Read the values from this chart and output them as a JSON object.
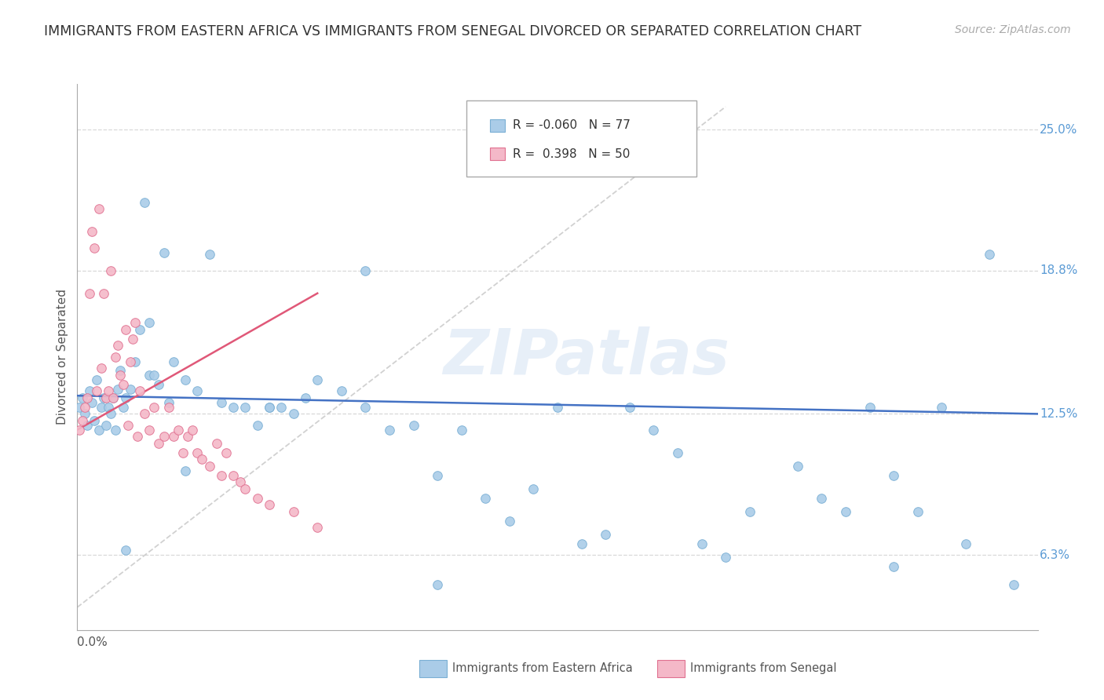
{
  "title": "IMMIGRANTS FROM EASTERN AFRICA VS IMMIGRANTS FROM SENEGAL DIVORCED OR SEPARATED CORRELATION CHART",
  "source": "Source: ZipAtlas.com",
  "ylabel": "Divorced or Separated",
  "watermark": "ZIPatlas",
  "series": [
    {
      "name": "Immigrants from Eastern Africa",
      "color": "#aacce8",
      "edge_color": "#7aafd4",
      "R": -0.06,
      "N": 77,
      "trend_color": "#4472c4",
      "x": [
        0.001,
        0.002,
        0.003,
        0.004,
        0.005,
        0.006,
        0.007,
        0.008,
        0.009,
        0.01,
        0.011,
        0.012,
        0.013,
        0.014,
        0.015,
        0.016,
        0.017,
        0.018,
        0.019,
        0.02,
        0.022,
        0.024,
        0.026,
        0.028,
        0.03,
        0.032,
        0.034,
        0.036,
        0.038,
        0.04,
        0.045,
        0.05,
        0.055,
        0.06,
        0.065,
        0.07,
        0.075,
        0.08,
        0.085,
        0.09,
        0.095,
        0.1,
        0.11,
        0.12,
        0.13,
        0.14,
        0.15,
        0.16,
        0.17,
        0.18,
        0.19,
        0.2,
        0.21,
        0.22,
        0.23,
        0.24,
        0.25,
        0.26,
        0.27,
        0.28,
        0.3,
        0.31,
        0.32,
        0.33,
        0.34,
        0.35,
        0.36,
        0.37,
        0.38,
        0.39,
        0.34,
        0.15,
        0.12,
        0.08,
        0.045,
        0.03,
        0.02
      ],
      "y": [
        0.128,
        0.132,
        0.125,
        0.12,
        0.135,
        0.13,
        0.122,
        0.14,
        0.118,
        0.128,
        0.132,
        0.12,
        0.128,
        0.125,
        0.132,
        0.118,
        0.136,
        0.144,
        0.128,
        0.132,
        0.136,
        0.148,
        0.162,
        0.218,
        0.142,
        0.142,
        0.138,
        0.196,
        0.13,
        0.148,
        0.14,
        0.135,
        0.195,
        0.13,
        0.128,
        0.128,
        0.12,
        0.128,
        0.128,
        0.125,
        0.132,
        0.14,
        0.135,
        0.128,
        0.118,
        0.12,
        0.098,
        0.118,
        0.088,
        0.078,
        0.092,
        0.128,
        0.068,
        0.072,
        0.128,
        0.118,
        0.108,
        0.068,
        0.062,
        0.082,
        0.102,
        0.088,
        0.082,
        0.128,
        0.098,
        0.082,
        0.128,
        0.068,
        0.195,
        0.05,
        0.058,
        0.05,
        0.188,
        0.128,
        0.1,
        0.165,
        0.065
      ]
    },
    {
      "name": "Immigrants from Senegal",
      "color": "#f4b8c8",
      "edge_color": "#e07090",
      "R": 0.398,
      "N": 50,
      "trend_color": "#e05878",
      "x": [
        0.001,
        0.002,
        0.003,
        0.004,
        0.005,
        0.006,
        0.007,
        0.008,
        0.009,
        0.01,
        0.011,
        0.012,
        0.013,
        0.014,
        0.015,
        0.016,
        0.017,
        0.018,
        0.019,
        0.02,
        0.021,
        0.022,
        0.023,
        0.024,
        0.025,
        0.026,
        0.028,
        0.03,
        0.032,
        0.034,
        0.036,
        0.038,
        0.04,
        0.042,
        0.044,
        0.046,
        0.048,
        0.05,
        0.052,
        0.055,
        0.058,
        0.06,
        0.062,
        0.065,
        0.068,
        0.07,
        0.075,
        0.08,
        0.09,
        0.1
      ],
      "y": [
        0.118,
        0.122,
        0.128,
        0.132,
        0.178,
        0.205,
        0.198,
        0.135,
        0.215,
        0.145,
        0.178,
        0.132,
        0.135,
        0.188,
        0.132,
        0.15,
        0.155,
        0.142,
        0.138,
        0.162,
        0.12,
        0.148,
        0.158,
        0.165,
        0.115,
        0.135,
        0.125,
        0.118,
        0.128,
        0.112,
        0.115,
        0.128,
        0.115,
        0.118,
        0.108,
        0.115,
        0.118,
        0.108,
        0.105,
        0.102,
        0.112,
        0.098,
        0.108,
        0.098,
        0.095,
        0.092,
        0.088,
        0.085,
        0.082,
        0.075
      ]
    }
  ],
  "xlim": [
    0.0,
    0.4
  ],
  "ylim": [
    0.03,
    0.27
  ],
  "yticks": [
    0.063,
    0.125,
    0.188,
    0.25
  ],
  "ytick_labels": [
    "6.3%",
    "12.5%",
    "18.8%",
    "25.0%"
  ],
  "background_color": "#ffffff",
  "grid_color": "#d8d8d8",
  "title_fontsize": 12.5,
  "source_fontsize": 10
}
